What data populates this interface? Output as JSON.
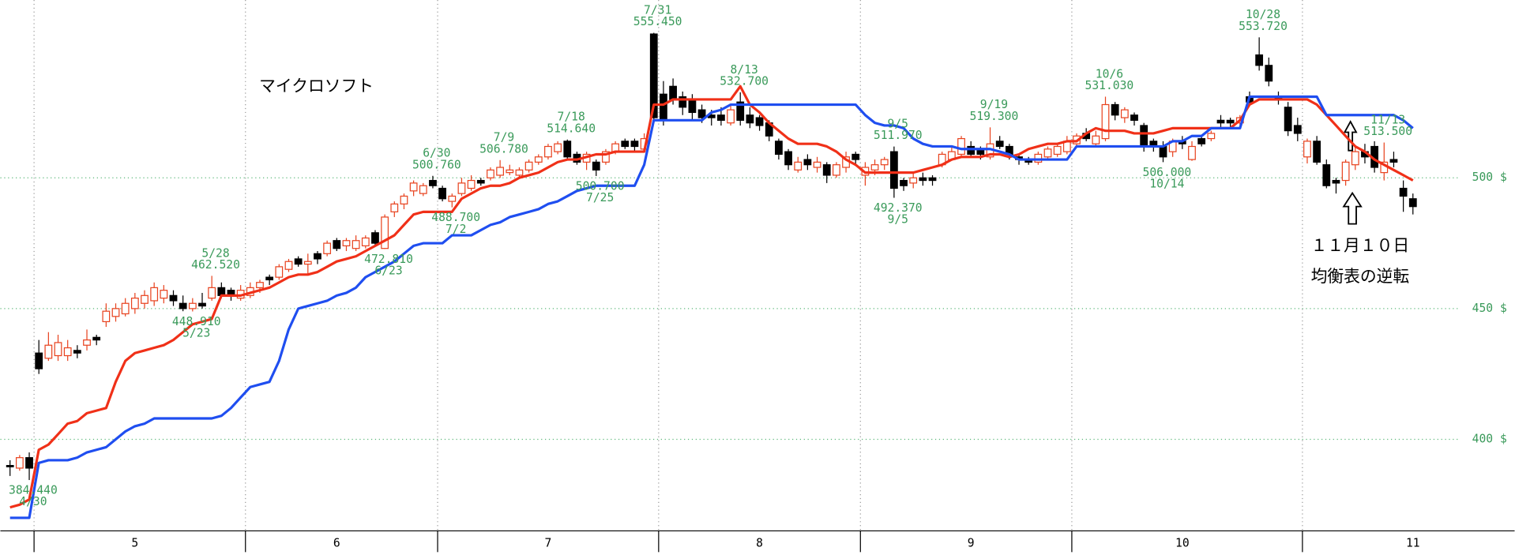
{
  "chart_data": {
    "type": "candlestick",
    "title": "マイクロソフト",
    "notes": [
      "１１月１０日",
      "均衡表の逆転"
    ],
    "categories": [
      null,
      null,
      null,
      null,
      null,
      null,
      null,
      null,
      null,
      null,
      null,
      null,
      null,
      "5",
      null,
      null,
      null,
      null,
      null,
      null,
      null,
      null,
      null,
      null,
      null,
      null,
      null,
      null,
      null,
      null,
      null,
      null,
      null,
      null,
      "6",
      null,
      null,
      null,
      null,
      null,
      null,
      null,
      null,
      null,
      null,
      null,
      null,
      null,
      null,
      null,
      null,
      null,
      null,
      null,
      null,
      null,
      "7",
      null,
      null,
      null,
      null,
      null,
      null,
      null,
      null,
      null,
      null,
      null,
      null,
      null,
      null,
      null,
      null,
      null,
      null,
      null,
      null,
      null,
      "8",
      null,
      null,
      null,
      null,
      null,
      null,
      null,
      null,
      null,
      null,
      null,
      null,
      null,
      null,
      null,
      null,
      null,
      null,
      null,
      null,
      null,
      "9",
      null,
      null,
      null,
      null,
      null,
      null,
      null,
      null,
      null,
      null,
      null,
      null,
      null,
      null,
      null,
      null,
      null,
      null,
      null,
      null,
      null,
      "10",
      null,
      null,
      null,
      null,
      null,
      null,
      null,
      null,
      null,
      null,
      null,
      null,
      null,
      null,
      null,
      null,
      null,
      null,
      null,
      null,
      null,
      null,
      null,
      "11"
    ],
    "open": [
      390,
      389,
      393,
      433,
      431,
      432,
      432,
      434,
      436,
      439,
      445,
      447,
      448,
      450,
      452,
      453,
      454,
      455,
      452,
      450,
      452,
      454,
      458,
      457,
      454,
      455,
      458,
      462,
      462,
      465,
      469,
      467,
      471,
      471,
      476,
      474,
      473,
      474,
      479,
      473,
      487,
      490,
      495,
      494,
      499,
      496,
      491,
      494,
      496,
      499,
      500,
      501,
      502,
      501,
      503,
      506,
      508,
      510,
      514,
      509,
      506,
      506,
      506,
      510,
      514,
      514,
      511,
      555,
      532,
      535,
      531,
      530,
      526,
      524,
      524,
      521,
      529,
      524,
      523,
      521,
      514,
      510,
      503,
      507,
      504,
      505,
      501,
      504,
      509,
      501,
      503,
      505,
      510,
      499,
      498,
      500,
      500,
      505,
      507,
      509,
      512,
      511,
      508,
      514,
      512,
      508,
      507,
      506,
      508,
      509,
      510,
      513,
      517,
      513,
      515,
      528,
      523,
      524,
      520,
      514,
      512,
      510,
      514,
      507,
      515,
      515,
      522,
      522,
      521,
      531,
      547,
      543,
      531,
      527,
      520,
      508,
      514,
      505,
      499,
      499,
      505,
      510,
      512,
      502,
      507,
      496,
      492
    ],
    "high": [
      392,
      394,
      395,
      438,
      441,
      440,
      438,
      436,
      442,
      440,
      452,
      452,
      454,
      456,
      457,
      460,
      459,
      457,
      455,
      454,
      456,
      462.52,
      460,
      458,
      459,
      460,
      461,
      463,
      467,
      469,
      470,
      471,
      472,
      476,
      477,
      477,
      478,
      478,
      480,
      486,
      491,
      494,
      499,
      498,
      500.76,
      497,
      494,
      500,
      501,
      500,
      504,
      506.78,
      505,
      504,
      507,
      509,
      513,
      514,
      514.64,
      510,
      510,
      507,
      511,
      514,
      515,
      515,
      517,
      555.45,
      537,
      538,
      533,
      532,
      528,
      526,
      527,
      528,
      532.7,
      527,
      524,
      522,
      515,
      511,
      508,
      509,
      508,
      506,
      506,
      510,
      510,
      506,
      507,
      508,
      511.97,
      500,
      502,
      502,
      501,
      510,
      512,
      516,
      514,
      512,
      519.3,
      516,
      513,
      509,
      508,
      510,
      512,
      513,
      516,
      517,
      519,
      518,
      531.03,
      529,
      527,
      525,
      521,
      515,
      514,
      515,
      516,
      514,
      516,
      518,
      524,
      523,
      524,
      533,
      553.72,
      546,
      533,
      529,
      523,
      515,
      516,
      507,
      500,
      507,
      512,
      513,
      514,
      513.5,
      510,
      499,
      494
    ],
    "low": [
      386,
      388,
      384.44,
      425,
      430,
      430,
      430,
      431,
      434,
      436,
      443,
      445,
      447,
      448,
      450,
      451,
      452,
      451,
      449,
      448.91,
      450,
      453,
      454,
      453,
      453,
      454,
      456,
      459,
      461,
      464,
      466,
      463,
      467,
      470,
      472,
      472,
      472,
      473,
      474,
      472.81,
      485,
      488,
      493,
      493,
      496,
      491,
      488.7,
      493,
      495,
      497,
      499,
      500,
      501,
      500,
      502,
      505,
      507,
      509,
      507,
      505,
      503,
      500.7,
      505,
      509,
      511,
      510,
      510,
      522,
      520,
      528,
      524,
      522,
      521,
      520,
      520,
      520,
      520,
      519,
      518,
      514,
      507,
      503,
      502,
      503,
      502,
      498,
      500,
      502,
      505,
      497,
      501,
      503,
      492.37,
      495,
      496,
      497,
      497,
      504,
      506.5,
      508,
      508,
      507,
      507,
      511,
      507,
      505,
      505,
      505,
      507,
      508,
      509,
      512,
      514,
      512,
      514,
      522,
      521,
      520,
      510,
      510,
      506,
      508,
      511,
      506.5,
      512,
      514,
      519,
      519,
      520,
      528,
      541,
      535,
      528,
      516,
      514,
      505.5,
      505,
      496,
      494,
      497,
      503,
      505.5,
      502,
      499,
      504,
      487,
      486
    ],
    "close": [
      389.5,
      393,
      389,
      427,
      436,
      437,
      435,
      433,
      438,
      438,
      449,
      450,
      452,
      454,
      455,
      458,
      457,
      453,
      450,
      452,
      451,
      458,
      455,
      455,
      457,
      458,
      460,
      461,
      466,
      468,
      467,
      468,
      469,
      475,
      473,
      476,
      476,
      477,
      475,
      485,
      490,
      493,
      498,
      497,
      497,
      492,
      493,
      498,
      499,
      498,
      503,
      504,
      503,
      503,
      506,
      508,
      512,
      513,
      508,
      506,
      509,
      503,
      510,
      513,
      512,
      512,
      515,
      523,
      522,
      530,
      527,
      525,
      523,
      523,
      522,
      526,
      522,
      521,
      520,
      516,
      509,
      505,
      506,
      505,
      506,
      501,
      505,
      508,
      507,
      504,
      505,
      507,
      496,
      497,
      500,
      499,
      499,
      509,
      510,
      515,
      509,
      509,
      513,
      512,
      509,
      507,
      506,
      509,
      511,
      512,
      514,
      516,
      515,
      516,
      528,
      524,
      526,
      522,
      512,
      512,
      508,
      514,
      513,
      512,
      513,
      517,
      521,
      521,
      523,
      529,
      543,
      537,
      530,
      518,
      517,
      514,
      506,
      497,
      498,
      506,
      510,
      508,
      504,
      506,
      506,
      493,
      489
    ],
    "up_color": "#e8431f",
    "down_color": "#000000",
    "lines": [
      {
        "color": "#f03018",
        "values": [
          374,
          375,
          377,
          396,
          398,
          402,
          406,
          407,
          410,
          411,
          412,
          422,
          430,
          433,
          434,
          435,
          436,
          438,
          441,
          444,
          445,
          446,
          455,
          455,
          455,
          456,
          457,
          458,
          460,
          462,
          463,
          463,
          464,
          466,
          468,
          469,
          470,
          472,
          474,
          476,
          478,
          482,
          486,
          487,
          487,
          487,
          487,
          492,
          494,
          496,
          497,
          497,
          498,
          500,
          501,
          502,
          504,
          506,
          507,
          507,
          508,
          509,
          509,
          510,
          510,
          510,
          510,
          528,
          528,
          530,
          530,
          530,
          530,
          530,
          530,
          530,
          535,
          528,
          525,
          521,
          518,
          515,
          513,
          513,
          513,
          512,
          510,
          507,
          505,
          502,
          502,
          502,
          502,
          502,
          502,
          503,
          504,
          505,
          507,
          508,
          508,
          508,
          509,
          509,
          508,
          509,
          511,
          512,
          513,
          513,
          514,
          514,
          517,
          519,
          518,
          518,
          518,
          517,
          517,
          517,
          518,
          519,
          519,
          519,
          519,
          519,
          519,
          519,
          522,
          528,
          530,
          530,
          530,
          530,
          530,
          530,
          528,
          524,
          520,
          516,
          512,
          510,
          507,
          505,
          503,
          501,
          499
        ]
      },
      {
        "color": "#1f4ef0",
        "values": [
          370,
          370,
          370,
          391,
          392,
          392,
          392,
          393,
          395,
          396,
          397,
          400,
          403,
          405,
          406,
          408,
          408,
          408,
          408,
          408,
          408,
          408,
          409,
          412,
          416,
          420,
          421,
          422,
          430,
          442,
          450,
          451,
          452,
          453,
          455,
          456,
          458,
          462,
          464,
          466,
          468,
          471,
          474,
          475,
          475,
          475,
          478,
          478,
          478,
          480,
          482,
          483,
          485,
          486,
          487,
          488,
          490,
          491,
          493,
          495,
          496,
          497,
          497,
          497,
          497,
          497,
          505,
          522,
          522,
          522,
          522,
          522,
          522,
          525,
          526,
          528,
          528,
          528,
          528,
          528,
          528,
          528,
          528,
          528,
          528,
          528,
          528,
          528,
          528,
          524,
          521,
          520,
          520,
          519,
          515,
          513,
          512,
          512,
          512,
          511,
          511,
          511,
          511,
          510,
          509,
          507,
          507,
          507,
          507,
          507,
          507,
          512,
          512,
          512,
          512,
          512,
          512,
          512,
          512,
          512,
          512,
          514,
          514,
          516,
          516,
          519,
          519,
          519,
          519,
          531,
          531,
          531,
          531,
          531,
          531,
          531,
          531,
          524,
          524,
          524,
          524,
          524,
          524,
          524,
          524,
          522,
          519
        ]
      }
    ],
    "annotations": [
      {
        "side": "low",
        "value": 384.44,
        "label": "384.440",
        "date": "4/30"
      },
      {
        "side": "low",
        "value": 448.91,
        "label": "448.910",
        "date": "5/23"
      },
      {
        "side": "high",
        "value": 462.52,
        "label": "462.520",
        "date": "5/28"
      },
      {
        "side": "low",
        "value": 472.81,
        "label": "472.810",
        "date": "6/23"
      },
      {
        "side": "high",
        "value": 500.76,
        "label": "500.760",
        "date": "6/30"
      },
      {
        "side": "low",
        "value": 488.7,
        "label": "488.700",
        "date": "7/2"
      },
      {
        "side": "high",
        "value": 506.78,
        "label": "506.780",
        "date": "7/9"
      },
      {
        "side": "high",
        "value": 514.64,
        "label": "514.640",
        "date": "7/18"
      },
      {
        "side": "low",
        "value": 500.7,
        "label": "500.700",
        "date": "7/25"
      },
      {
        "side": "high",
        "value": 555.45,
        "label": "555.450",
        "date": "7/31"
      },
      {
        "side": "high",
        "value": 532.7,
        "label": "532.700",
        "date": "8/13"
      },
      {
        "side": "high",
        "value": 511.97,
        "label": "511.970",
        "date": "9/5"
      },
      {
        "side": "low",
        "value": 492.37,
        "label": "492.370",
        "date": "9/5"
      },
      {
        "side": "high",
        "value": 519.3,
        "label": "519.300",
        "date": "9/19"
      },
      {
        "side": "high",
        "value": 531.03,
        "label": "531.030",
        "date": "10/6"
      },
      {
        "side": "low",
        "value": 506,
        "label": "506.000",
        "date": "10/14"
      },
      {
        "side": "high",
        "value": 553.72,
        "label": "553.720",
        "date": "10/28"
      },
      {
        "side": "high",
        "value": 513.5,
        "label": "513.500",
        "date": "11/13"
      }
    ],
    "xticks": [
      2.5,
      24.5,
      44.5,
      67.5,
      88.5,
      110.5,
      134.5
    ],
    "ylim": [
      365,
      568
    ],
    "yticks": [
      {
        "value": 400,
        "label": "400 $"
      },
      {
        "value": 450,
        "label": "450 $"
      },
      {
        "value": 500,
        "label": "500 $"
      }
    ],
    "grid": true,
    "grid_color": "#5cb87a"
  }
}
